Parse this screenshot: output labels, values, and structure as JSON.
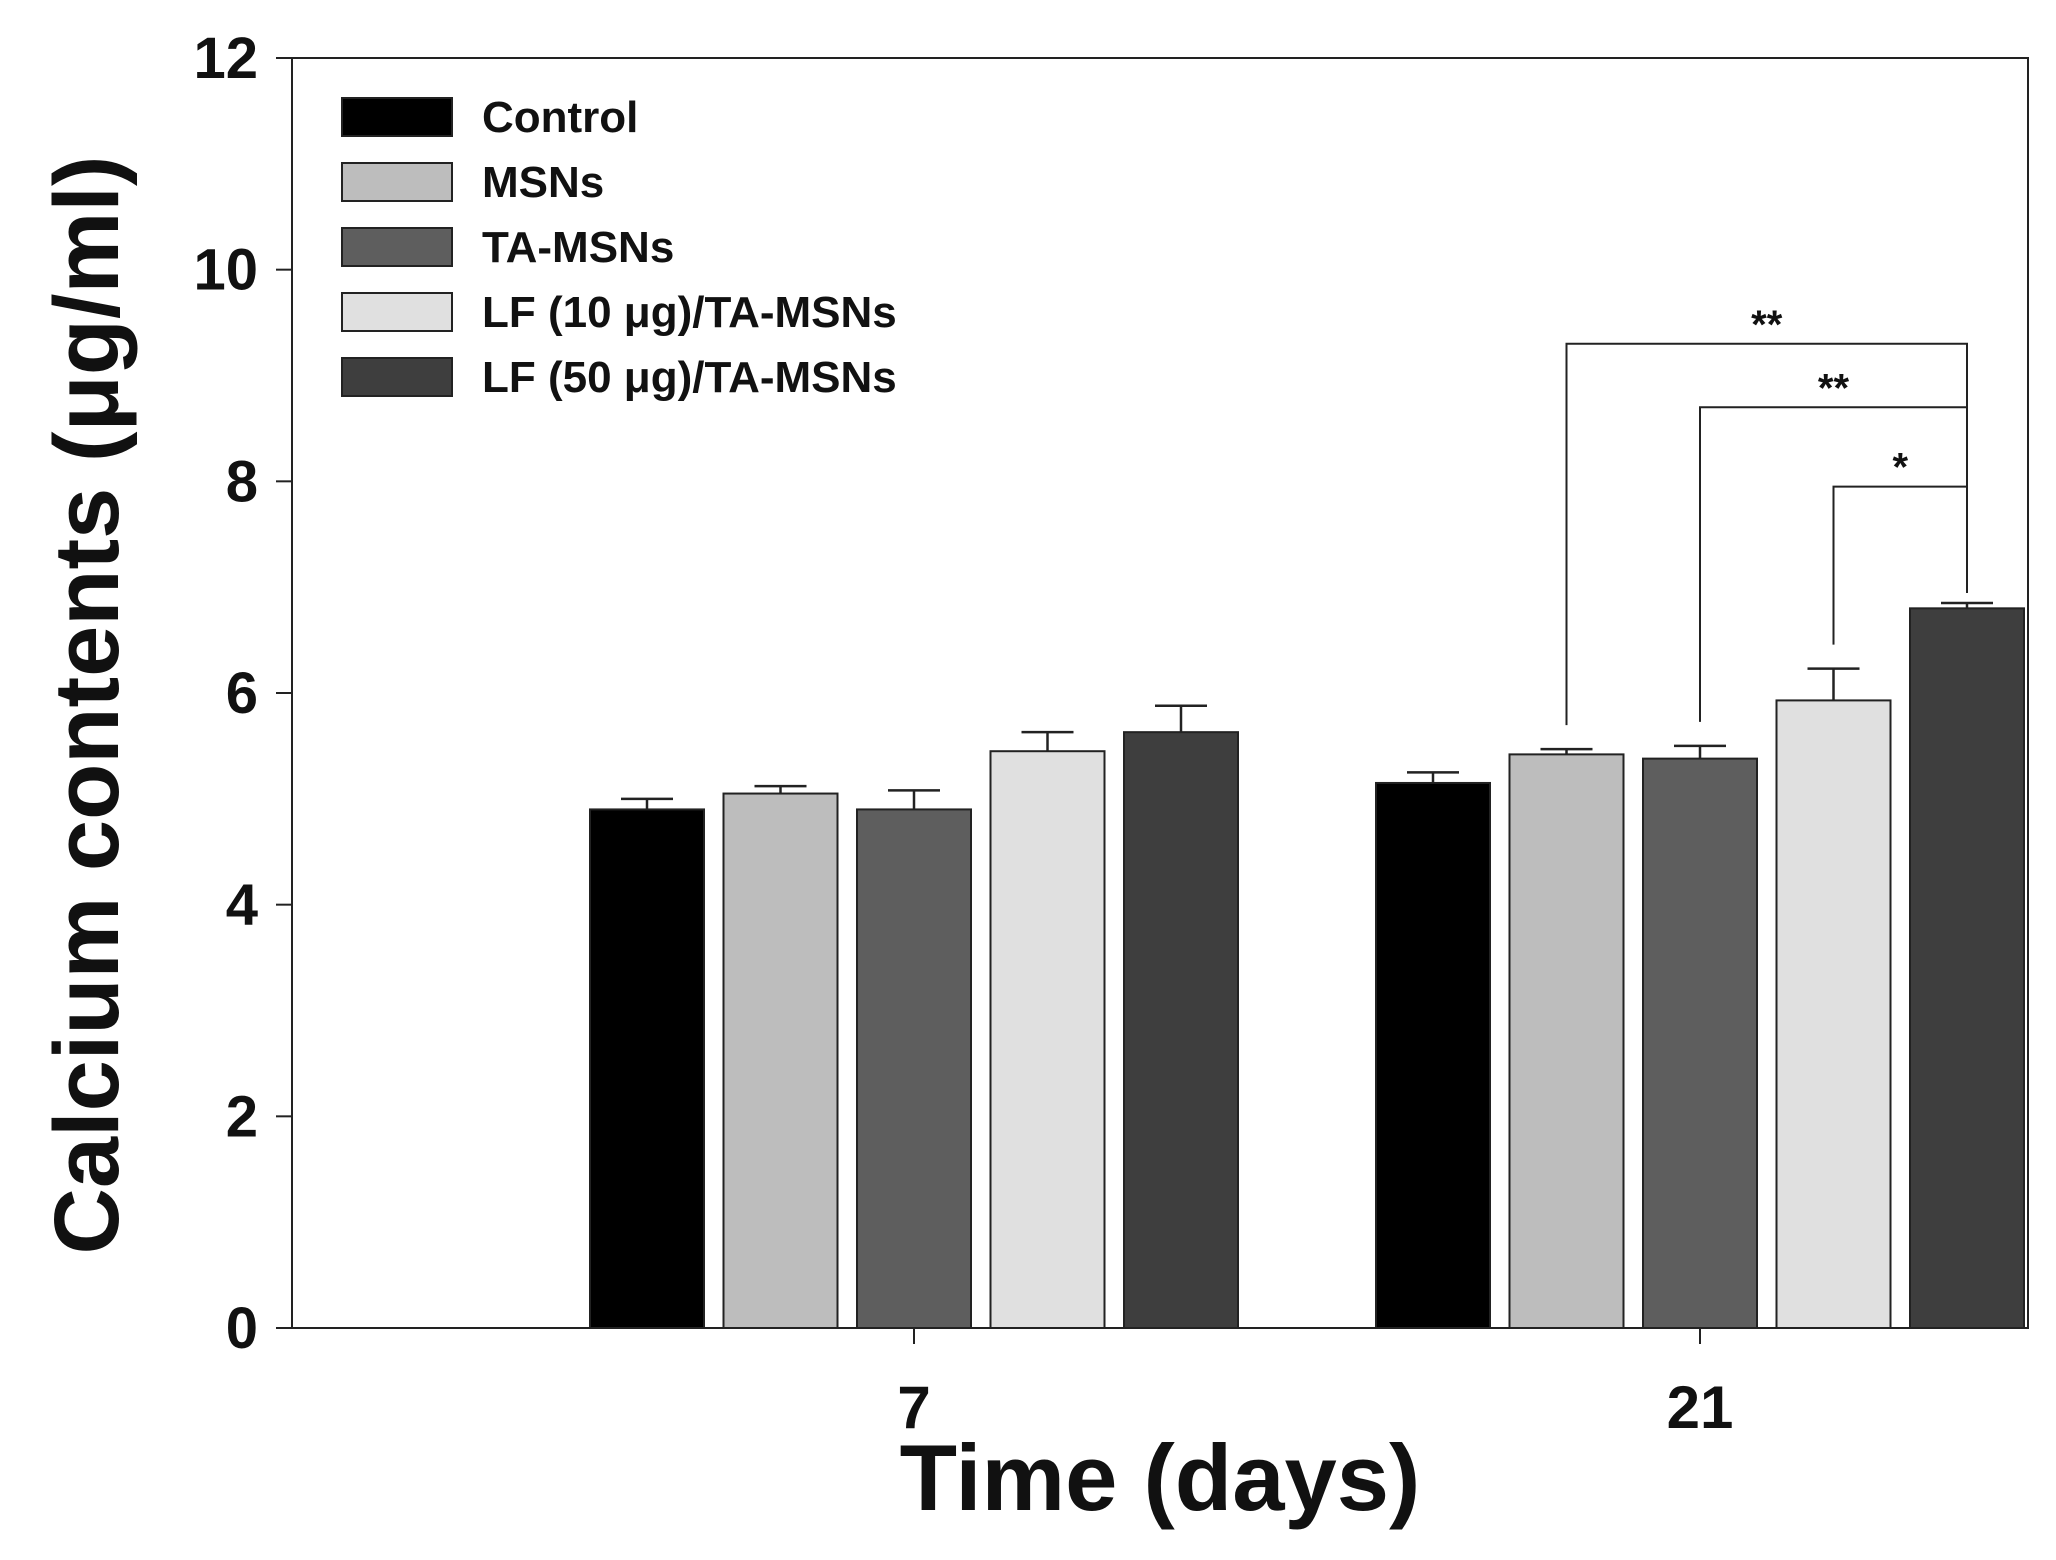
{
  "chart_data": {
    "type": "bar",
    "xlabel": "Time (days)",
    "ylabel": "Calcium contents (μg/ml)",
    "ylim": [
      0,
      12
    ],
    "yticks": [
      0,
      2,
      4,
      6,
      8,
      10,
      12
    ],
    "categories": [
      "7",
      "21"
    ],
    "legend_position": "top-left",
    "series": [
      {
        "name": "Control",
        "color": "#000000",
        "values": [
          4.9,
          5.15
        ],
        "errors": [
          0.1,
          0.1
        ]
      },
      {
        "name": "MSNs",
        "color": "#bdbdbd",
        "values": [
          5.05,
          5.42
        ],
        "errors": [
          0.07,
          0.05
        ]
      },
      {
        "name": "TA-MSNs",
        "color": "#5e5e5e",
        "values": [
          4.9,
          5.38
        ],
        "errors": [
          0.18,
          0.12
        ]
      },
      {
        "name": "LF (10 μg)/TA-MSNs",
        "color": "#e0e0e0",
        "values": [
          5.45,
          5.93
        ],
        "errors": [
          0.18,
          0.3
        ]
      },
      {
        "name": "LF (50 μg)/TA-MSNs",
        "color": "#3e3e3e",
        "values": [
          5.63,
          6.8
        ],
        "errors": [
          0.25,
          0.05
        ]
      }
    ],
    "significance": [
      {
        "category": "21",
        "from_series": 1,
        "to_series": 4,
        "label": "**",
        "y": 9.3
      },
      {
        "category": "21",
        "from_series": 2,
        "to_series": 4,
        "label": "**",
        "y": 8.7
      },
      {
        "category": "21",
        "from_series": 3,
        "to_series": 4,
        "label": "*",
        "y": 7.95
      }
    ]
  }
}
